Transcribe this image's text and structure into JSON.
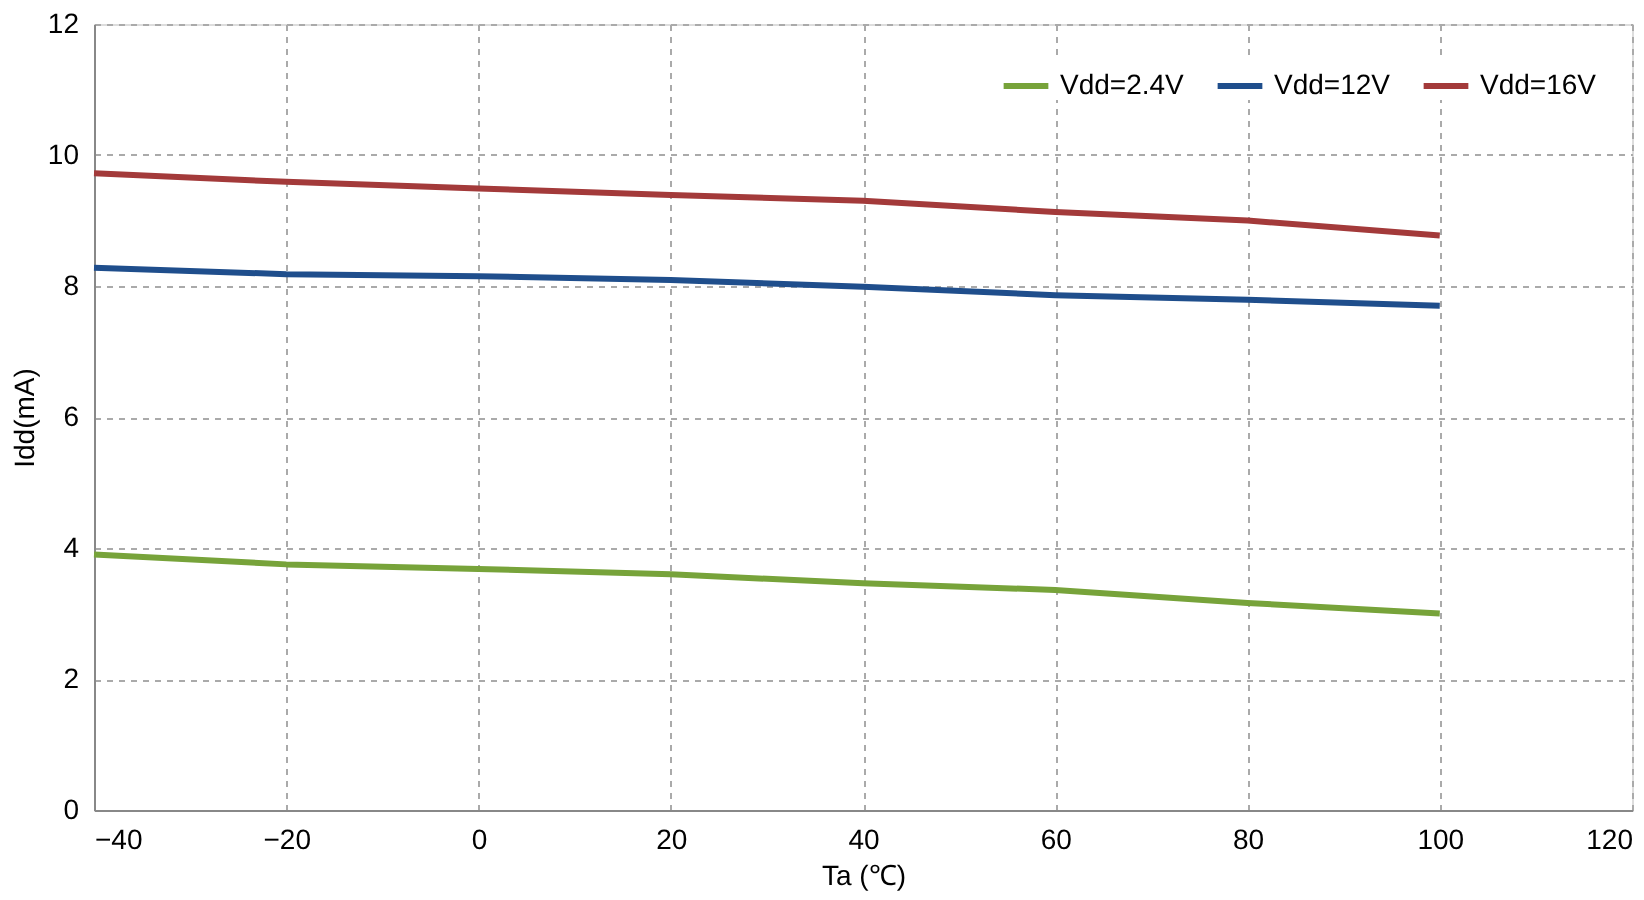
{
  "chart_data": {
    "type": "line",
    "xlabel": "Ta (℃)",
    "ylabel": "Idd(mA)",
    "x": [
      -40,
      -20,
      0,
      20,
      40,
      60,
      80,
      100
    ],
    "series": [
      {
        "name": "Vdd=2.4V",
        "color": "#77a33a",
        "values": [
          3.9,
          3.75,
          3.68,
          3.6,
          3.46,
          3.36,
          3.16,
          3.0
        ]
      },
      {
        "name": "Vdd=12V",
        "color": "#1f4e8c",
        "values": [
          8.28,
          8.18,
          8.15,
          8.09,
          7.99,
          7.86,
          7.79,
          7.7
        ]
      },
      {
        "name": "Vdd=16V",
        "color": "#a33a3a",
        "values": [
          9.72,
          9.59,
          9.49,
          9.39,
          9.3,
          9.13,
          9.0,
          8.77
        ]
      }
    ],
    "xlim": [
      -40,
      120
    ],
    "xticks": [
      -40,
      -20,
      0,
      20,
      40,
      60,
      80,
      100,
      120
    ],
    "ylim": [
      0,
      12
    ],
    "yticks": [
      0,
      2,
      4,
      6,
      8,
      10,
      12
    ],
    "grid": true,
    "legend": "top right",
    "marker": "none",
    "line_style": "solid"
  }
}
